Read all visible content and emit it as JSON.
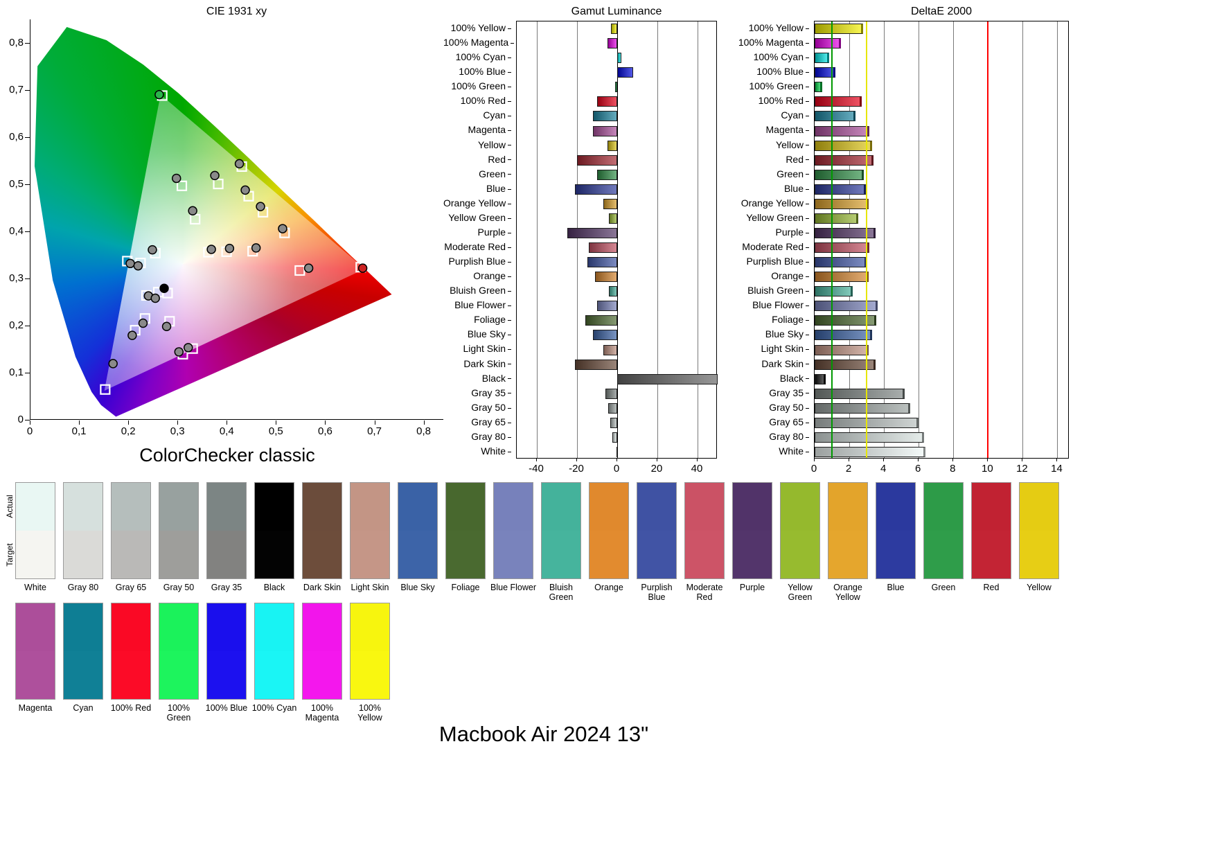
{
  "page": {
    "title": "Macbook Air 2024 13\""
  },
  "side_labels": {
    "actual": "Actual",
    "target": "Target"
  },
  "chart_data": [
    {
      "type": "scatter",
      "title": "CIE 1931 xy",
      "caption": "ColorChecker classic",
      "xlim": [
        0,
        0.84
      ],
      "ylim": [
        0,
        0.85
      ],
      "x_ticks": {
        "labels": [
          "0",
          "0,1",
          "0,2",
          "0,3",
          "0,4",
          "0,5",
          "0,6",
          "0,7",
          "0,8"
        ],
        "values": [
          0,
          0.1,
          0.2,
          0.3,
          0.4,
          0.5,
          0.6,
          0.7,
          0.8
        ]
      },
      "y_ticks": {
        "labels": [
          "0",
          "0,1",
          "0,2",
          "0,3",
          "0,4",
          "0,5",
          "0,6",
          "0,7",
          "0,8"
        ],
        "values": [
          0,
          0.1,
          0.2,
          0.3,
          0.4,
          0.5,
          0.6,
          0.7,
          0.8
        ]
      },
      "white_point": [
        0.31,
        0.33
      ],
      "gamut_triangle": [
        [
          0.68,
          0.32
        ],
        [
          0.265,
          0.69
        ],
        [
          0.15,
          0.06
        ]
      ],
      "points": [
        {
          "name": "100% Green",
          "measured": [
            0.262,
            0.69
          ],
          "target": [
            0.268,
            0.688
          ],
          "marker_fill": "#2bb54a"
        },
        {
          "name": "100% Yellow",
          "measured": [
            0.425,
            0.543
          ],
          "target": [
            0.43,
            0.537
          ]
        },
        {
          "name": "Yellow Green",
          "measured": [
            0.375,
            0.518
          ],
          "target": [
            0.382,
            0.5
          ]
        },
        {
          "name": "Green",
          "measured": [
            0.297,
            0.512
          ],
          "target": [
            0.308,
            0.496
          ]
        },
        {
          "name": "Yellow",
          "measured": [
            0.437,
            0.487
          ],
          "target": [
            0.444,
            0.474
          ]
        },
        {
          "name": "Orange Yellow",
          "measured": [
            0.468,
            0.452
          ],
          "target": [
            0.473,
            0.44
          ]
        },
        {
          "name": "Foliage",
          "measured": [
            0.33,
            0.443
          ],
          "target": [
            0.335,
            0.425
          ]
        },
        {
          "name": "Orange",
          "measured": [
            0.513,
            0.405
          ],
          "target": [
            0.517,
            0.396
          ]
        },
        {
          "name": "100% Red",
          "measured": [
            0.676,
            0.321
          ],
          "target": [
            0.672,
            0.323
          ],
          "marker_fill": "#cc2222"
        },
        {
          "name": "Red",
          "measured": [
            0.566,
            0.321
          ],
          "target": [
            0.548,
            0.316
          ]
        },
        {
          "name": "Moderate Red",
          "measured": [
            0.459,
            0.364
          ],
          "target": [
            0.452,
            0.357
          ]
        },
        {
          "name": "Dark Skin",
          "measured": [
            0.405,
            0.363
          ],
          "target": [
            0.399,
            0.356
          ]
        },
        {
          "name": "Light Skin",
          "measured": [
            0.368,
            0.361
          ],
          "target": [
            0.362,
            0.355
          ]
        },
        {
          "name": "White",
          "measured": [
            0.272,
            0.278
          ],
          "target": [
            0.279,
            0.268
          ],
          "marker_fill": "#000000"
        },
        {
          "name": "100% Cyan",
          "measured": [
            0.203,
            0.331
          ],
          "target": [
            0.197,
            0.336
          ]
        },
        {
          "name": "Bluish Green",
          "measured": [
            0.248,
            0.36
          ],
          "target": [
            0.254,
            0.353
          ]
        },
        {
          "name": "Cyan",
          "measured": [
            0.219,
            0.326
          ],
          "target": [
            0.224,
            0.332
          ]
        },
        {
          "name": "Blue Sky",
          "measured": [
            0.24,
            0.262
          ],
          "target": [
            0.236,
            0.263
          ]
        },
        {
          "name": "Blue Flower",
          "measured": [
            0.254,
            0.257
          ],
          "target": [
            0.26,
            0.27
          ]
        },
        {
          "name": "Purplish Blue",
          "measured": [
            0.229,
            0.204
          ],
          "target": [
            0.233,
            0.214
          ]
        },
        {
          "name": "Blue",
          "measured": [
            0.207,
            0.178
          ],
          "target": [
            0.213,
            0.189
          ]
        },
        {
          "name": "Purple",
          "measured": [
            0.277,
            0.197
          ],
          "target": [
            0.283,
            0.208
          ]
        },
        {
          "name": "100% Blue",
          "measured": [
            0.168,
            0.118
          ],
          "target": [
            0.152,
            0.063
          ]
        },
        {
          "name": "Magenta",
          "measured": [
            0.321,
            0.152
          ],
          "target": [
            0.33,
            0.15
          ]
        },
        {
          "name": "100% Magenta",
          "measured": [
            0.302,
            0.143
          ],
          "target": [
            0.31,
            0.138
          ]
        }
      ]
    },
    {
      "type": "bar",
      "orientation": "horizontal",
      "title": "Gamut Luminance",
      "categories": [
        "100% Yellow",
        "100% Magenta",
        "100% Cyan",
        "100% Blue",
        "100% Green",
        "100% Red",
        "Cyan",
        "Magenta",
        "Yellow",
        "Red",
        "Green",
        "Blue",
        "Orange Yellow",
        "Yellow Green",
        "Purple",
        "Moderate Red",
        "Purplish Blue",
        "Orange",
        "Bluish Green",
        "Blue Flower",
        "Foliage",
        "Blue Sky",
        "Light Skin",
        "Dark Skin",
        "Black",
        "Gray 35",
        "Gray 50",
        "Gray 65",
        "Gray 80",
        "White"
      ],
      "values": [
        -3,
        -5,
        2,
        8,
        -1,
        -10,
        -12,
        -12,
        -5,
        -20,
        -10,
        -21,
        -7,
        -4,
        -25,
        -14,
        -15,
        -11,
        -4,
        -10,
        -16,
        -12,
        -7,
        -21,
        50,
        -6,
        -4.5,
        -3.5,
        -2.5,
        -0.5
      ],
      "xlim": [
        -50,
        50
      ],
      "x_ticks": [
        -40,
        -20,
        0,
        20,
        40
      ],
      "gridlines": [
        -40,
        -20,
        20,
        40
      ],
      "zero_line": 0,
      "color_overrides": {
        "Black": "#666666"
      }
    },
    {
      "type": "bar",
      "orientation": "horizontal",
      "title": "DeltaE 2000",
      "categories": [
        "100% Yellow",
        "100% Magenta",
        "100% Cyan",
        "100% Blue",
        "100% Green",
        "100% Red",
        "Cyan",
        "Magenta",
        "Yellow",
        "Red",
        "Green",
        "Blue",
        "Orange Yellow",
        "Yellow Green",
        "Purple",
        "Moderate Red",
        "Purplish Blue",
        "Orange",
        "Bluish Green",
        "Blue Flower",
        "Foliage",
        "Blue Sky",
        "Light Skin",
        "Dark Skin",
        "Black",
        "Gray 35",
        "Gray 50",
        "Gray 65",
        "Gray 80",
        "White"
      ],
      "values": [
        2.8,
        1.5,
        0.85,
        1.2,
        0.45,
        2.7,
        2.35,
        3.15,
        3.3,
        3.4,
        2.85,
        2.95,
        3.1,
        2.5,
        3.5,
        3.15,
        3.0,
        3.1,
        2.2,
        3.65,
        3.55,
        3.3,
        3.1,
        3.5,
        0.65,
        5.2,
        5.5,
        6.0,
        6.3,
        6.4
      ],
      "xlim": [
        0,
        14.7
      ],
      "x_ticks": [
        0,
        2,
        4,
        6,
        8,
        10,
        12,
        14
      ],
      "gridlines": [
        2,
        4,
        6,
        8,
        12,
        14
      ],
      "reference_lines": [
        {
          "value": 1,
          "color": "#009900"
        },
        {
          "value": 3,
          "color": "#e6e600"
        },
        {
          "value": 10,
          "color": "#ff0000"
        }
      ]
    }
  ],
  "patch_colors": {
    "White": {
      "bar": "#eef6f4",
      "actual": "#e9f7f3",
      "target": "#f5f5f1"
    },
    "Gray 80": {
      "bar": "#d8e1df",
      "actual": "#d6e0dd",
      "target": "#dadad7"
    },
    "Gray 65": {
      "bar": "#b7bfbd",
      "actual": "#b5bebc",
      "target": "#bab9b7"
    },
    "Gray 50": {
      "bar": "#9aa2a0",
      "actual": "#98a19f",
      "target": "#9e9e9b"
    },
    "Gray 35": {
      "bar": "#7f8785",
      "actual": "#7c8584",
      "target": "#828280"
    },
    "Black": {
      "bar": "#111111",
      "actual": "#000000",
      "target": "#030303"
    },
    "Dark Skin": {
      "bar": "#6a4b3a",
      "actual": "#6b4c3b",
      "target": "#6d4d3b"
    },
    "Light Skin": {
      "bar": "#bf9181",
      "actual": "#c39585",
      "target": "#c59687"
    },
    "Blue Sky": {
      "bar": "#3a62a6",
      "actual": "#3a62a6",
      "target": "#3d64a8"
    },
    "Foliage": {
      "bar": "#4d6a31",
      "actual": "#48682e",
      "target": "#4a6a30"
    },
    "Blue Flower": {
      "bar": "#7780b8",
      "actual": "#7781bb",
      "target": "#7983bc"
    },
    "Bluish Green": {
      "bar": "#45b09a",
      "actual": "#44b29b",
      "target": "#46b49d"
    },
    "Orange": {
      "bar": "#d5842c",
      "actual": "#e0892d",
      "target": "#e28b2f"
    },
    "Purplish Blue": {
      "bar": "#3f54a4",
      "actual": "#3f52a3",
      "target": "#4154a5"
    },
    "Moderate Red": {
      "bar": "#c25062",
      "actual": "#cb5265",
      "target": "#cd5467"
    },
    "Purple": {
      "bar": "#533566",
      "actual": "#513369",
      "target": "#53356b"
    },
    "Yellow Green": {
      "bar": "#93b631",
      "actual": "#95b92d",
      "target": "#97bb2f"
    },
    "Orange Yellow": {
      "bar": "#d99f2b",
      "actual": "#e3a42b",
      "target": "#e5a62d"
    },
    "Blue": {
      "bar": "#2c3a9c",
      "actual": "#2b399e",
      "target": "#2d3ba0"
    },
    "Green": {
      "bar": "#2f8f47",
      "actual": "#2d9b48",
      "target": "#2f9d4a"
    },
    "Red": {
      "bar": "#a62832",
      "actual": "#c12232",
      "target": "#c32434"
    },
    "Yellow": {
      "bar": "#dcc414",
      "actual": "#e5cc13",
      "target": "#e7ce15"
    },
    "Magenta": {
      "bar": "#ab4f9b",
      "actual": "#ac4e9a",
      "target": "#ae509c"
    },
    "Cyan": {
      "bar": "#1b84a0",
      "actual": "#0e7e94",
      "target": "#108096"
    },
    "100% Red": {
      "bar": "#e6001a",
      "actual": "#fa0925",
      "target": "#fc0b27"
    },
    "100% Green": {
      "bar": "#00cc44",
      "actual": "#1bf25b",
      "target": "#1df45d"
    },
    "100% Blue": {
      "bar": "#0008dc",
      "actual": "#1a0fed",
      "target": "#1c11ef"
    },
    "100% Cyan": {
      "bar": "#00e0e0",
      "actual": "#18f3f3",
      "target": "#1af5f5"
    },
    "100% Magenta": {
      "bar": "#e400e4",
      "actual": "#f215eb",
      "target": "#f417ed"
    },
    "100% Yellow": {
      "bar": "#f2ef00",
      "actual": "#f7f50e",
      "target": "#f9f710"
    }
  },
  "swatches": {
    "row1": [
      "White",
      "Gray 80",
      "Gray 65",
      "Gray 50",
      "Gray 35",
      "Black",
      "Dark Skin",
      "Light Skin",
      "Blue Sky",
      "Foliage",
      "Blue Flower",
      "Bluish Green",
      "Orange",
      "Purplish Blue",
      "Moderate Red",
      "Purple",
      "Yellow Green",
      "Orange Yellow",
      "Blue",
      "Green",
      "Red",
      "Yellow"
    ],
    "row2": [
      "Magenta",
      "Cyan",
      "100% Red",
      "100% Green",
      "100% Blue",
      "100% Cyan",
      "100% Magenta",
      "100% Yellow"
    ]
  }
}
